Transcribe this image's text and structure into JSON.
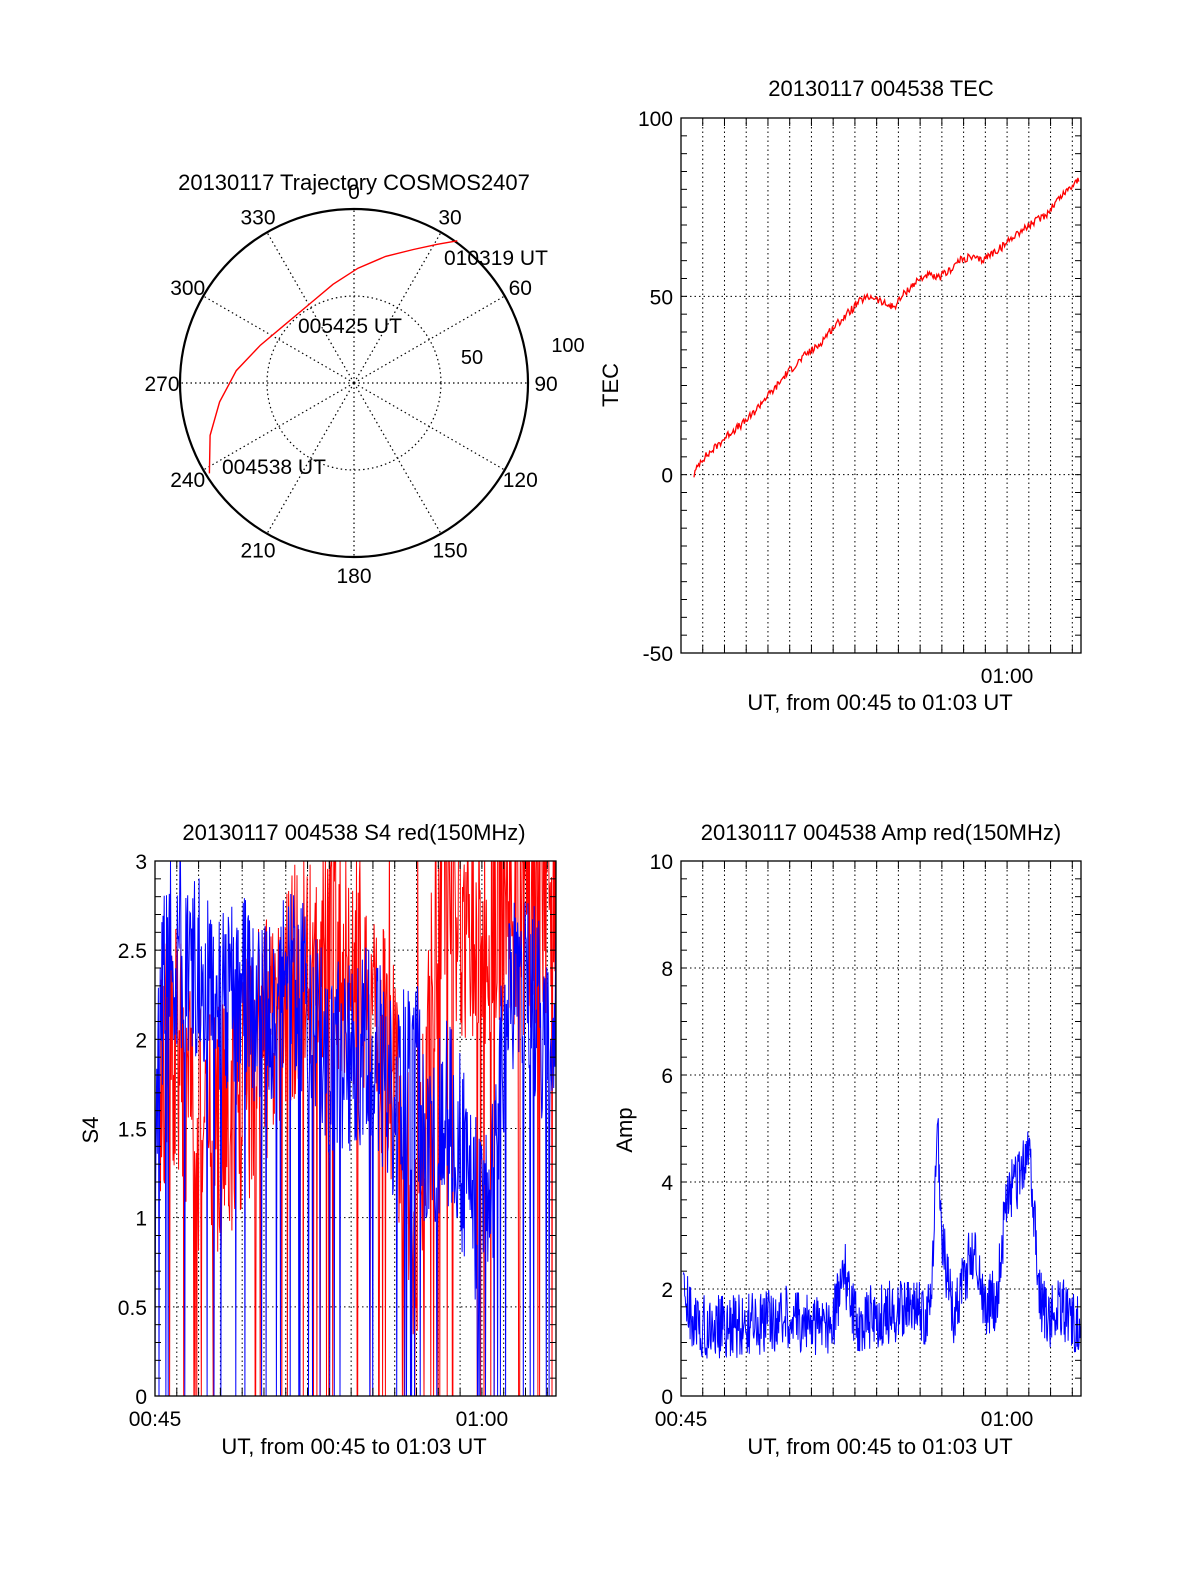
{
  "chart_data": [
    {
      "type": "polar",
      "title": "20130117 Trajectory COSMOS2407",
      "azimuth_labels": [
        "0",
        "30",
        "60",
        "90",
        "120",
        "150",
        "180",
        "210",
        "240",
        "270",
        "300",
        "330"
      ],
      "radial_labels": [
        "50",
        "100"
      ],
      "radial_max": 100,
      "grid": true,
      "series": [
        {
          "color": "#ff0000",
          "points": [
            {
              "az": 238,
              "r": 98
            },
            {
              "az": 250,
              "r": 88
            },
            {
              "az": 262,
              "r": 78
            },
            {
              "az": 276,
              "r": 68
            },
            {
              "az": 292,
              "r": 58
            },
            {
              "az": 310,
              "r": 52
            },
            {
              "az": 330,
              "r": 52
            },
            {
              "az": 348,
              "r": 58
            },
            {
              "az": 2,
              "r": 66
            },
            {
              "az": 14,
              "r": 75
            },
            {
              "az": 24,
              "r": 84
            },
            {
              "az": 31,
              "r": 93
            },
            {
              "az": 36,
              "r": 101
            }
          ]
        }
      ],
      "annotations": [
        {
          "text": "010319 UT",
          "az": 36,
          "r": 101
        },
        {
          "text": "005425 UT",
          "az": 330,
          "r": 52
        },
        {
          "text": "004538 UT",
          "az": 238,
          "r": 98
        }
      ]
    },
    {
      "type": "line",
      "title": "20130117 004538 TEC",
      "xlabel": "UT, from 00:45 to 01:03 UT",
      "ylabel": "TEC",
      "xlim": [
        45.0,
        63.4
      ],
      "ylim": [
        -50,
        100
      ],
      "xticks": [
        {
          "value": 60,
          "label": "01:00"
        }
      ],
      "yticks": [
        -50,
        0,
        50,
        100
      ],
      "grid": true,
      "series": [
        {
          "color": "#ff0000",
          "x": [
            45.6,
            45.9,
            46.3,
            46.8,
            47.3,
            47.8,
            48.3,
            48.8,
            49.3,
            49.8,
            50.3,
            50.8,
            51.3,
            51.8,
            52.3,
            52.8,
            53.3,
            53.8,
            54.3,
            54.8,
            55.3,
            55.8,
            56.3,
            56.8,
            57.3,
            57.8,
            58.3,
            58.8,
            59.3,
            59.8,
            60.3,
            60.8,
            61.3,
            61.8,
            62.3,
            62.8,
            63.3
          ],
          "y": [
            0,
            4,
            6,
            9,
            12,
            14,
            17,
            21,
            24,
            28,
            31,
            34,
            36,
            40,
            43,
            46,
            49,
            50,
            48,
            47,
            51,
            54,
            56,
            55,
            57,
            60,
            61,
            60,
            62,
            64,
            67,
            69,
            71,
            73,
            77,
            80,
            83
          ]
        }
      ]
    },
    {
      "type": "line",
      "title": "20130117 004538 S4 red(150MHz)",
      "xlabel": "UT, from 00:45 to 01:03 UT",
      "ylabel": "S4",
      "xlim": [
        45.0,
        63.4
      ],
      "ylim": [
        0,
        3
      ],
      "xticks": [
        {
          "value": 45,
          "label": "00:45"
        },
        {
          "value": 60,
          "label": "01:00"
        }
      ],
      "yticks": [
        {
          "value": 0,
          "label": "0"
        },
        {
          "value": 0.5,
          "label": "0.5"
        },
        {
          "value": 1,
          "label": "1"
        },
        {
          "value": 1.5,
          "label": "1.5"
        },
        {
          "value": 2,
          "label": "2"
        },
        {
          "value": 2.5,
          "label": "2.5"
        },
        {
          "value": 3,
          "label": "3"
        }
      ],
      "grid": true,
      "series": [
        {
          "color": "#ff0000",
          "x": [
            45.2,
            46.0,
            47.0,
            48.0,
            49.0,
            50.0,
            51.0,
            52.0,
            53.0,
            54.0,
            55.0,
            55.5,
            56.0,
            56.5,
            57.0,
            57.5,
            58.0,
            58.5,
            59.0,
            60.0,
            61.0,
            62.0,
            63.0,
            63.4
          ],
          "y": [
            1.8,
            2.0,
            1.5,
            1.5,
            1.7,
            2.0,
            2.2,
            2.5,
            2.6,
            2.4,
            2.2,
            2.0,
            1.8,
            1.3,
            0.9,
            1.8,
            2.8,
            2.9,
            2.7,
            2.6,
            2.8,
            2.7,
            2.8,
            2.9
          ]
        },
        {
          "color": "#0000ff",
          "x": [
            45.0,
            45.5,
            46.0,
            47.0,
            48.0,
            49.0,
            50.0,
            51.0,
            52.0,
            53.0,
            54.0,
            55.0,
            56.0,
            56.5,
            57.0,
            57.5,
            58.0,
            58.5,
            59.0,
            59.5,
            60.0,
            60.5,
            61.0,
            61.5,
            62.0,
            62.5,
            63.0,
            63.4
          ],
          "y": [
            1.5,
            2.6,
            2.3,
            2.4,
            2.2,
            2.3,
            2.1,
            2.3,
            2.2,
            1.9,
            1.9,
            2.0,
            1.6,
            1.8,
            1.8,
            1.3,
            1.5,
            1.6,
            1.4,
            1.1,
            1.0,
            1.1,
            2.0,
            2.4,
            2.3,
            2.2,
            2.0,
            2.2
          ]
        }
      ]
    },
    {
      "type": "line",
      "title": "20130117 004538 Amp red(150MHz)",
      "xlabel": "UT, from 00:45 to 01:03 UT",
      "ylabel": "Amp",
      "xlim": [
        45.0,
        63.4
      ],
      "ylim": [
        0,
        10
      ],
      "xticks": [
        {
          "value": 45,
          "label": "00:45"
        },
        {
          "value": 60,
          "label": "01:00"
        }
      ],
      "yticks": [
        0,
        2,
        4,
        6,
        8,
        10
      ],
      "grid": true,
      "series": [
        {
          "color": "#0000ff",
          "x": [
            45.1,
            45.5,
            46.0,
            47.0,
            48.0,
            49.0,
            50.0,
            51.0,
            52.0,
            52.5,
            53.0,
            54.0,
            55.0,
            56.0,
            56.5,
            56.8,
            57.0,
            57.5,
            58.0,
            58.5,
            59.0,
            59.5,
            60.0,
            60.5,
            61.0,
            61.5,
            62.0,
            62.5,
            63.0,
            63.4
          ],
          "y": [
            2.0,
            1.4,
            1.3,
            1.3,
            1.3,
            1.4,
            1.5,
            1.3,
            1.4,
            2.4,
            1.4,
            1.5,
            1.6,
            1.6,
            1.5,
            5.0,
            3.0,
            1.5,
            2.2,
            2.8,
            1.7,
            1.8,
            3.8,
            4.0,
            4.7,
            1.8,
            1.5,
            1.7,
            1.4,
            1.3
          ]
        }
      ]
    }
  ]
}
